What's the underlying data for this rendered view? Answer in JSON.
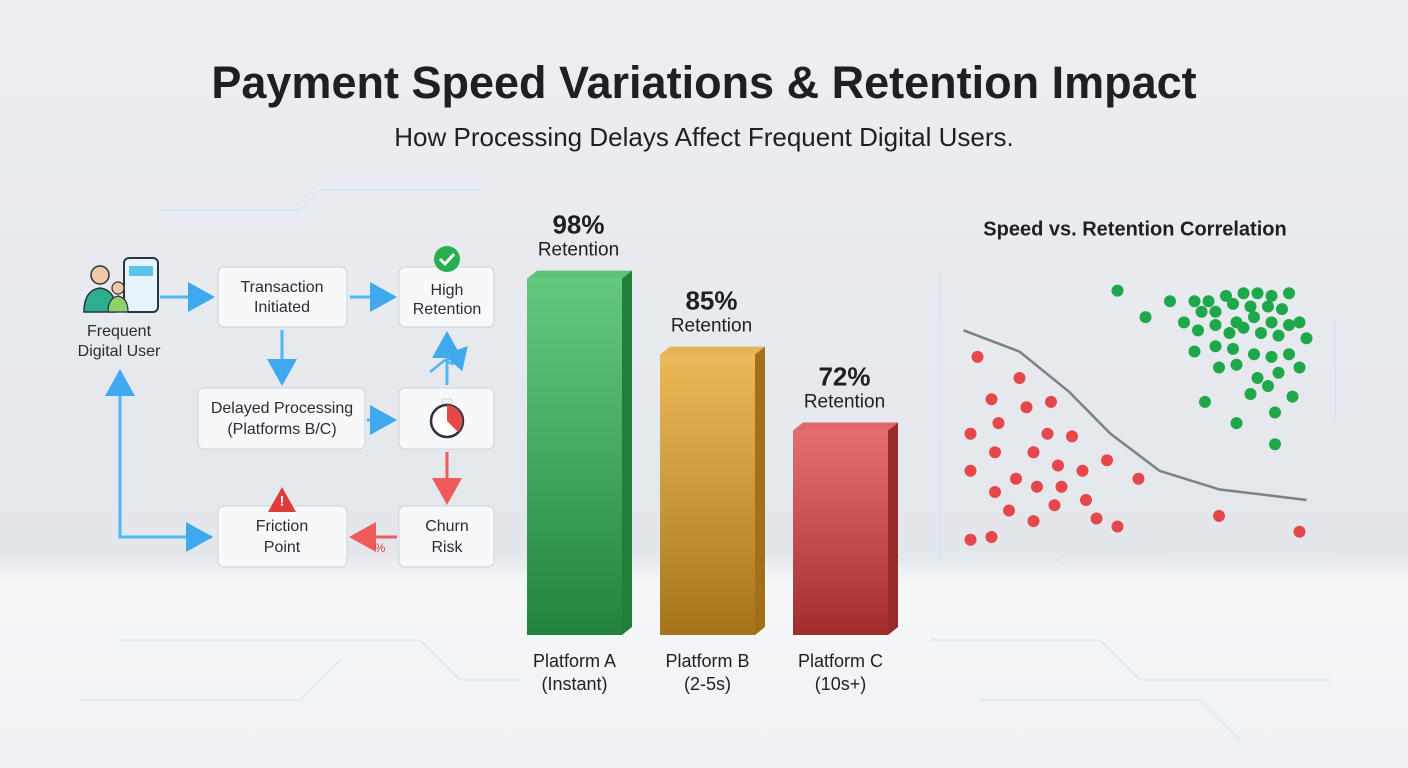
{
  "title": "Payment Speed Variations & Retention Impact",
  "subtitle": "How Processing Delays Affect Frequent Digital Users.",
  "diagram": {
    "nodes": [
      {
        "lines": [
          "Frequent",
          "Digital User"
        ]
      },
      {
        "lines": [
          "Transaction",
          "Initiated"
        ]
      },
      {
        "lines": [
          "High",
          "Retention"
        ]
      },
      {
        "lines": [
          "Delayed Processing",
          "(Platforms B/C)"
        ]
      },
      {
        "lines": [
          "Churn",
          "Risk"
        ]
      },
      {
        "lines": [
          "Friction",
          "Point"
        ]
      }
    ],
    "annotation": "%"
  },
  "chart_data": [
    {
      "type": "bar",
      "categories": [
        "Platform A",
        "Platform B",
        "Platform C"
      ],
      "category_notes": [
        "(Instant)",
        "(2-5s)",
        "(10s+)"
      ],
      "values": [
        98,
        85,
        72
      ],
      "value_labels": [
        "98%",
        "85%",
        "72%"
      ],
      "value_caption": "Retention",
      "colors": [
        "#2fb653",
        "#e6a022",
        "#de3d3d"
      ],
      "ylim": [
        37,
        100
      ]
    },
    {
      "type": "scatter",
      "title": "Speed vs. Retention Correlation",
      "xlim": [
        0,
        100
      ],
      "ylim": [
        0,
        100
      ],
      "series": [
        {
          "color": "#e5474b",
          "x": [
            5,
            17,
            9,
            19,
            26,
            11,
            3,
            25,
            32,
            10,
            21,
            42,
            28,
            3,
            16,
            35,
            51,
            10,
            22,
            29,
            36,
            14,
            27,
            21,
            39,
            45,
            74,
            3,
            9,
            97
          ],
          "y": [
            71,
            63,
            55,
            52,
            54,
            46,
            42,
            42,
            41,
            35,
            35,
            32,
            30,
            28,
            25,
            28,
            25,
            20,
            22,
            22,
            17,
            13,
            15,
            9,
            10,
            7,
            11,
            2,
            3,
            5
          ]
        },
        {
          "color": "#1fa84b",
          "x": [
            45,
            53,
            60,
            67,
            71,
            76,
            81,
            85,
            89,
            94,
            64,
            69,
            73,
            78,
            83,
            88,
            92,
            97,
            68,
            73,
            79,
            84,
            89,
            94,
            77,
            81,
            86,
            91,
            99,
            67,
            73,
            78,
            84,
            89,
            94,
            74,
            79,
            85,
            91,
            97,
            83,
            88,
            95,
            70,
            79,
            90,
            90
          ],
          "y": [
            96,
            86,
            92,
            92,
            92,
            94,
            95,
            95,
            94,
            95,
            84,
            88,
            88,
            91,
            90,
            90,
            89,
            84,
            81,
            83,
            84,
            86,
            84,
            83,
            80,
            82,
            80,
            79,
            78,
            73,
            75,
            74,
            72,
            71,
            72,
            67,
            68,
            63,
            65,
            67,
            57,
            60,
            56,
            54,
            46,
            50,
            38
          ]
        }
      ],
      "trend": {
        "color": "#7b8189",
        "x": [
          1,
          17,
          31,
          43,
          57,
          74,
          99
        ],
        "y": [
          81,
          73,
          58,
          42,
          28,
          21,
          17
        ]
      }
    }
  ]
}
